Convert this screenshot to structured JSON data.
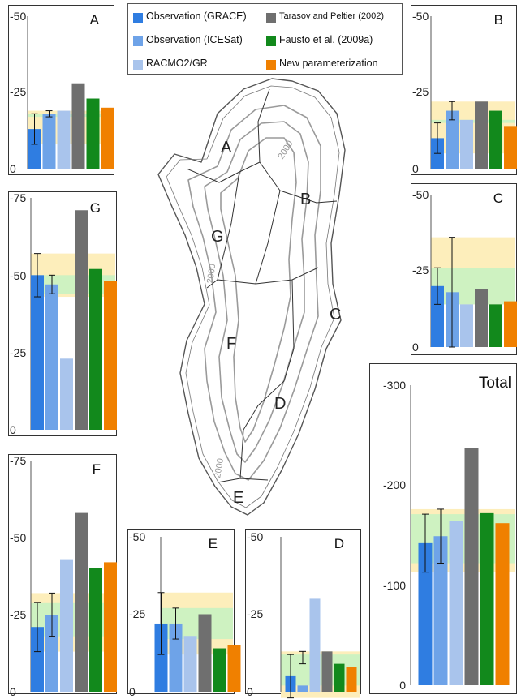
{
  "legend": [
    {
      "label": "Observation (GRACE)",
      "color": "#2f7de1"
    },
    {
      "label": "Observation (ICESat)",
      "color": "#6ea3e8"
    },
    {
      "label": "RACMO2/GR",
      "color": "#a9c4ec"
    },
    {
      "label": "Tarasov and Peltier (2002)",
      "color": "#6f6f6f"
    },
    {
      "label": "Fausto et al. (2009a)",
      "color": "#12891c"
    },
    {
      "label": "New parameterization",
      "color": "#f08000"
    }
  ],
  "band_colors": {
    "yellow": "#fdeebb",
    "green": "#c9f2c2"
  },
  "map": {
    "region_labels": [
      "A",
      "B",
      "C",
      "D",
      "E",
      "F",
      "G"
    ],
    "contour_labels": [
      "2000",
      "2000",
      "2000",
      "2000"
    ]
  },
  "chart_data": [
    {
      "type": "bar",
      "title": "A",
      "ylim": [
        0,
        -50
      ],
      "ticks": [
        "-50",
        "-25",
        "0"
      ],
      "values": [
        -13,
        -18,
        -19,
        -28,
        -23,
        -20
      ],
      "errors": [
        [
          -8,
          -18
        ],
        [
          -17,
          -19
        ],
        null,
        null,
        null,
        null
      ],
      "bands": [
        {
          "color": "yellow",
          "range": [
            -8,
            -19
          ]
        },
        {
          "color": "green",
          "range": [
            -17,
            -18
          ]
        }
      ]
    },
    {
      "type": "bar",
      "title": "B",
      "ylim": [
        0,
        -50
      ],
      "ticks": [
        "-50",
        "-25",
        "0"
      ],
      "values": [
        -10,
        -19,
        -16,
        -22,
        -19,
        -14
      ],
      "errors": [
        [
          -5,
          -15
        ],
        [
          -16,
          -22
        ],
        null,
        null,
        null,
        null
      ],
      "bands": [
        {
          "color": "yellow",
          "range": [
            -5,
            -22
          ]
        },
        {
          "color": "green",
          "range": [
            -15,
            -16
          ]
        }
      ]
    },
    {
      "type": "bar",
      "title": "C",
      "ylim": [
        0,
        -50
      ],
      "ticks": [
        "-50",
        "-25",
        "0"
      ],
      "values": [
        -20,
        -18,
        -14,
        -19,
        -14,
        -15
      ],
      "errors": [
        [
          -14,
          -26
        ],
        [
          0,
          -36
        ],
        null,
        null,
        null,
        null
      ],
      "bands": [
        {
          "color": "yellow",
          "range": [
            -14,
            -36
          ]
        },
        {
          "color": "green",
          "range": [
            -14,
            -26
          ]
        }
      ]
    },
    {
      "type": "bar",
      "title": "G",
      "ylim": [
        0,
        -75
      ],
      "ticks": [
        "-75",
        "-50",
        "-25",
        "0"
      ],
      "values": [
        -50,
        -47,
        -23,
        -71,
        -52,
        -48
      ],
      "errors": [
        [
          -43,
          -57
        ],
        [
          -44,
          -50
        ],
        null,
        null,
        null,
        null
      ],
      "bands": [
        {
          "color": "yellow",
          "range": [
            -43,
            -57
          ]
        },
        {
          "color": "green",
          "range": [
            -44,
            -50
          ]
        }
      ]
    },
    {
      "type": "bar",
      "title": "F",
      "ylim": [
        0,
        -75
      ],
      "ticks": [
        "-75",
        "-50",
        "-25",
        "0"
      ],
      "values": [
        -21,
        -25,
        -43,
        -58,
        -40,
        -42
      ],
      "errors": [
        [
          -13,
          -29
        ],
        [
          -18,
          -32
        ],
        null,
        null,
        null,
        null
      ],
      "bands": [
        {
          "color": "yellow",
          "range": [
            -13,
            -32
          ]
        },
        {
          "color": "green",
          "range": [
            -18,
            -29
          ]
        }
      ]
    },
    {
      "type": "bar",
      "title": "E",
      "ylim": [
        0,
        -50
      ],
      "ticks": [
        "-50",
        "-25",
        "0"
      ],
      "values": [
        -22,
        -22,
        -18,
        -25,
        -14,
        -15
      ],
      "errors": [
        [
          -12,
          -32
        ],
        [
          -17,
          -27
        ],
        null,
        null,
        null,
        null
      ],
      "bands": [
        {
          "color": "yellow",
          "range": [
            -12,
            -32
          ]
        },
        {
          "color": "green",
          "range": [
            -17,
            -27
          ]
        }
      ]
    },
    {
      "type": "bar",
      "title": "D",
      "ylim": [
        0,
        -50
      ],
      "ticks": [
        "-50",
        "-25",
        "0"
      ],
      "values": [
        -5,
        -2,
        -30,
        -13,
        -9,
        -8
      ],
      "errors": [
        [
          2,
          -12
        ],
        [
          -9,
          -13
        ],
        null,
        null,
        null,
        null
      ],
      "bands": [
        {
          "color": "yellow",
          "range": [
            2,
            -13
          ]
        },
        {
          "color": "green",
          "range": [
            -2,
            -12
          ]
        }
      ]
    },
    {
      "type": "bar",
      "title": "Total",
      "ylim": [
        0,
        -300
      ],
      "ticks": [
        "-300",
        "-200",
        "-100",
        "0"
      ],
      "values": [
        -142,
        -149,
        -164,
        -237,
        -172,
        -162
      ],
      "errors": [
        [
          -113,
          -171
        ],
        [
          -122,
          -176
        ],
        null,
        null,
        null,
        null
      ],
      "bands": [
        {
          "color": "yellow",
          "range": [
            -113,
            -176
          ]
        },
        {
          "color": "green",
          "range": [
            -122,
            -171
          ]
        }
      ]
    }
  ]
}
